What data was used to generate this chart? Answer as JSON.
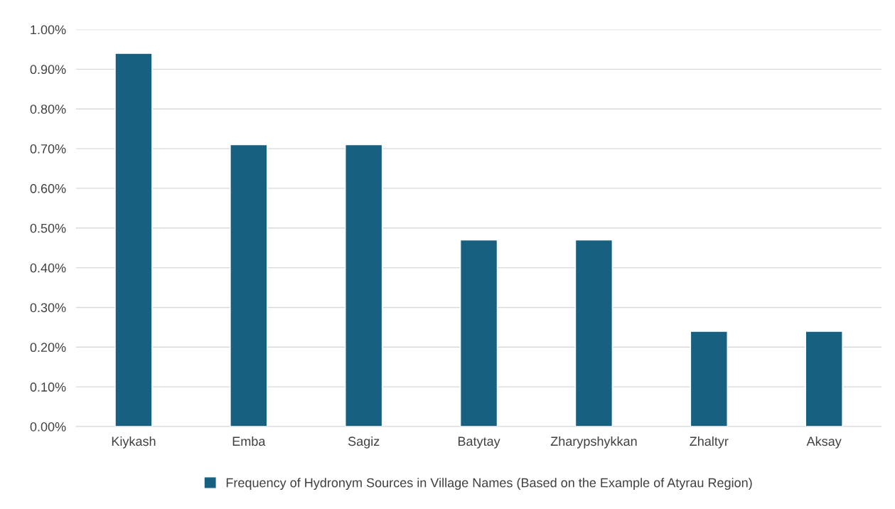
{
  "chart_data": {
    "type": "bar",
    "categories": [
      "Kiykash",
      "Emba",
      "Sagiz",
      "Batytay",
      "Zharypshykkan",
      "Zhaltyr",
      "Aksay"
    ],
    "series": [
      {
        "name": "Frequency of Hydronym Sources in Village Names (Based on the Example of Atyrau Region)",
        "color": "#17607f",
        "values": [
          0.94,
          0.71,
          0.71,
          0.47,
          0.47,
          0.24,
          0.24
        ]
      }
    ],
    "ylim": [
      0,
      1.0
    ],
    "yticks": [
      {
        "value": 0,
        "label": "0.00%"
      },
      {
        "value": 0.1,
        "label": "0.10%"
      },
      {
        "value": 0.2,
        "label": "0.20%"
      },
      {
        "value": 0.3,
        "label": "0.30%"
      },
      {
        "value": 0.4,
        "label": "0.40%"
      },
      {
        "value": 0.5,
        "label": "0.50%"
      },
      {
        "value": 0.6,
        "label": "0.60%"
      },
      {
        "value": 0.7,
        "label": "0.70%"
      },
      {
        "value": 0.8,
        "label": "0.80%"
      },
      {
        "value": 0.9,
        "label": "0.90%"
      },
      {
        "value": 1.0,
        "label": "1.00%"
      }
    ],
    "grid": "y",
    "legend": "bottom"
  }
}
